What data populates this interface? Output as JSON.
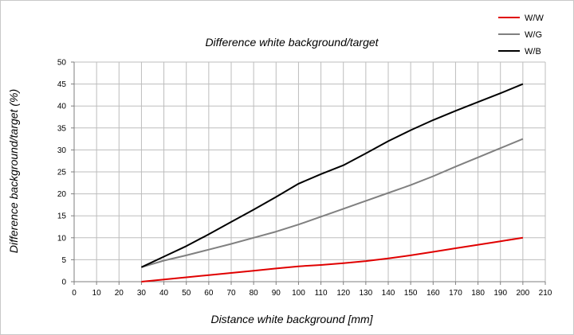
{
  "chart_data": {
    "type": "line",
    "title": "Difference white background/target",
    "xlabel": "Distance white background [mm]",
    "ylabel": "Difference background/target (%)",
    "xlim": [
      0,
      210
    ],
    "ylim": [
      0,
      50
    ],
    "xticks": [
      0,
      10,
      20,
      30,
      40,
      50,
      60,
      70,
      80,
      90,
      100,
      110,
      120,
      130,
      140,
      150,
      160,
      170,
      180,
      190,
      200,
      210
    ],
    "yticks": [
      0,
      5,
      10,
      15,
      20,
      25,
      30,
      35,
      40,
      45,
      50
    ],
    "grid": true,
    "legend_position": "top-right",
    "x": [
      30,
      40,
      50,
      60,
      70,
      80,
      90,
      100,
      110,
      120,
      130,
      140,
      150,
      160,
      170,
      180,
      190,
      200
    ],
    "series": [
      {
        "name": "W/W",
        "color": "#e00000",
        "values": [
          0.0,
          0.5,
          1.0,
          1.5,
          2.0,
          2.5,
          3.0,
          3.5,
          3.8,
          4.2,
          4.7,
          5.3,
          6.0,
          6.8,
          7.6,
          8.4,
          9.2,
          10.0
        ]
      },
      {
        "name": "W/G",
        "color": "#808080",
        "values": [
          3.3,
          4.8,
          6.0,
          7.3,
          8.6,
          10.0,
          11.4,
          13.0,
          14.8,
          16.6,
          18.4,
          20.2,
          22.0,
          24.0,
          26.2,
          28.3,
          30.4,
          32.5
        ]
      },
      {
        "name": "W/B",
        "color": "#000000",
        "values": [
          3.3,
          5.7,
          8.1,
          10.8,
          13.6,
          16.4,
          19.3,
          22.3,
          24.5,
          26.5,
          29.2,
          32.0,
          34.5,
          36.8,
          38.9,
          40.9,
          42.9,
          45.0
        ]
      }
    ]
  }
}
